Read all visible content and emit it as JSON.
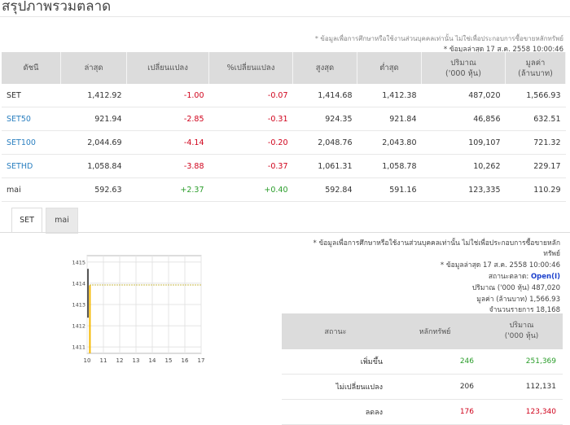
{
  "page": {
    "title": "สรุปภาพรวมตลาด",
    "disclaimer": "* ข้อมูลเพื่อการศึกษาหรือใช้งานส่วนบุคคลเท่านั้น ไม่ใช่เพื่อประกอบการซื้อขายหลักทรัพย์",
    "last_update": "* ข้อมูลล่าสุด 17 ส.ค. 2558 10:00:46"
  },
  "market_table": {
    "headers": [
      "ดัชนี",
      "ล่าสุด",
      "เปลี่ยนแปลง",
      "%เปลี่ยนแปลง",
      "สูงสุด",
      "ต่ำสุด",
      "ปริมาณ\n('000 หุ้น)",
      "มูลค่า\n(ล้านบาท)"
    ],
    "rows": [
      {
        "name": "SET",
        "last": "1,412.92",
        "change": "-1.00",
        "pct": "-0.07",
        "high": "1,414.68",
        "low": "1,412.38",
        "volume": "487,020",
        "value": "1,566.93",
        "dir": "neg",
        "link": false
      },
      {
        "name": "SET50",
        "last": "921.94",
        "change": "-2.85",
        "pct": "-0.31",
        "high": "924.35",
        "low": "921.84",
        "volume": "46,856",
        "value": "632.51",
        "dir": "neg",
        "link": true
      },
      {
        "name": "SET100",
        "last": "2,044.69",
        "change": "-4.14",
        "pct": "-0.20",
        "high": "2,048.76",
        "low": "2,043.80",
        "volume": "109,107",
        "value": "721.32",
        "dir": "neg",
        "link": true
      },
      {
        "name": "SETHD",
        "last": "1,058.84",
        "change": "-3.88",
        "pct": "-0.37",
        "high": "1,061.31",
        "low": "1,058.78",
        "volume": "10,262",
        "value": "229.17",
        "dir": "neg",
        "link": true
      },
      {
        "name": "mai",
        "last": "592.63",
        "change": "+2.37",
        "pct": "+0.40",
        "high": "592.84",
        "low": "591.16",
        "volume": "123,335",
        "value": "110.29",
        "dir": "pos",
        "link": false
      }
    ]
  },
  "tabs": [
    {
      "label": "SET",
      "active": true
    },
    {
      "label": "mai",
      "active": false
    }
  ],
  "info_panel": {
    "disclaimer_line1": "* ข้อมูลเพื่อการศึกษาหรือใช้งานส่วนบุคคลเท่านั้น ไม่ใช่เพื่อประกอบการซื้อขายหลัก",
    "disclaimer_line2": "ทรัพย์",
    "last_update": "* ข้อมูลล่าสุด 17 ส.ค. 2558 10:00:46",
    "status_label": "สถานะตลาด:",
    "status_value": "Open(I)",
    "volume_label": "ปริมาณ ('000 หุ้น)",
    "volume_value": "487,020",
    "value_label": "มูลค่า (ล้านบาท)",
    "value_value": "1,566.93",
    "trades_label": "จำนวนรายการ",
    "trades_value": "18,168"
  },
  "stats_table": {
    "headers": [
      "สถานะ",
      "หลักทรัพย์",
      "ปริมาณ\n('000 หุ้น)"
    ],
    "rows": [
      {
        "label": "เพิ่มขึ้น",
        "count": "246",
        "volume": "251,369",
        "dir": "pos"
      },
      {
        "label": "ไม่เปลี่ยนแปลง",
        "count": "206",
        "volume": "112,131",
        "dir": "flat"
      },
      {
        "label": "ลดลง",
        "count": "176",
        "volume": "123,340",
        "dir": "neg"
      }
    ]
  },
  "colors": {
    "up": "#2a9d2a",
    "down": "#d0021b",
    "link": "#2a7fc0",
    "bar": "#f5b800",
    "line": "#c8b84a"
  },
  "chart_data": {
    "type": "bar",
    "x_ticks": [
      "10",
      "11",
      "12",
      "13",
      "14",
      "15",
      "16",
      "17"
    ],
    "y_ticks": [
      "1411",
      "1412",
      "1413",
      "1414",
      "1415"
    ],
    "xlim": [
      10,
      17
    ],
    "ylim": [
      1410.7,
      1415.3
    ],
    "reference_line": 1413.92,
    "bars": [
      {
        "x": 10.0,
        "high": 1414.68,
        "low": 1412.38
      },
      {
        "x": 10.07,
        "high": 1413.9,
        "low": 1410.7
      }
    ],
    "grid": true
  }
}
